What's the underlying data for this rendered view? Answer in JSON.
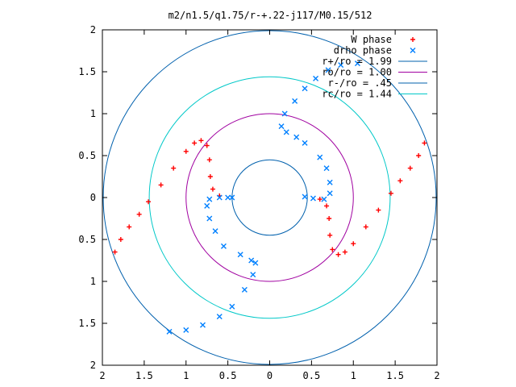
{
  "chart_data": {
    "type": "scatter",
    "title": "m2/n1.5/q1.75/r-+.22-j117/M0.15/512",
    "xlim": [
      -2,
      2
    ],
    "ylim": [
      -2,
      2
    ],
    "x_tick_values": [
      -2,
      -1.5,
      -1,
      -0.5,
      0,
      0.5,
      1,
      1.5,
      2
    ],
    "x_tick_labels": [
      "2",
      "1.5",
      "1",
      "0.5",
      "0",
      "0.5",
      "1",
      "1.5",
      "2"
    ],
    "y_tick_values": [
      2,
      1.5,
      1,
      0.5,
      0,
      -0.5,
      -1,
      -1.5,
      -2
    ],
    "y_tick_labels": [
      "2",
      "1.5",
      "1",
      "0.5",
      "0",
      "0.5",
      "1",
      "1.5",
      "2"
    ],
    "grid": false,
    "legend_position": "top-right",
    "legend": [
      {
        "label": "W phase",
        "marker": "plus",
        "color": "#ff0000"
      },
      {
        "label": "drho phase",
        "marker": "cross",
        "color": "#0080ff"
      },
      {
        "label": "r+/ro = 1.99",
        "marker": "line",
        "color": "#0060ad"
      },
      {
        "label": "ro/ro = 1.00",
        "marker": "line",
        "color": "#a000a0"
      },
      {
        "label": "r-/ro = .45",
        "marker": "line",
        "color": "#0060ad"
      },
      {
        "label": "rc/ro = 1.44",
        "marker": "line",
        "color": "#00c8c8"
      }
    ],
    "circles": [
      {
        "label": "r+/ro = 1.99",
        "radius": 1.99,
        "color": "#0060ad"
      },
      {
        "label": "ro/ro = 1.00",
        "radius": 1.0,
        "color": "#a000a0"
      },
      {
        "label": "r-/ro = .45",
        "radius": 0.45,
        "color": "#0060ad"
      },
      {
        "label": "rc/ro = 1.44",
        "radius": 1.44,
        "color": "#00c8c8"
      }
    ],
    "series": [
      {
        "name": "W phase",
        "marker": "plus",
        "color": "#ff0000",
        "points": [
          [
            1.85,
            0.65
          ],
          [
            1.78,
            0.5
          ],
          [
            1.68,
            0.35
          ],
          [
            1.56,
            0.2
          ],
          [
            1.45,
            0.05
          ],
          [
            1.3,
            -0.15
          ],
          [
            1.15,
            -0.35
          ],
          [
            1.0,
            -0.55
          ],
          [
            0.9,
            -0.65
          ],
          [
            0.82,
            -0.68
          ],
          [
            0.75,
            -0.62
          ],
          [
            0.72,
            -0.45
          ],
          [
            0.71,
            -0.25
          ],
          [
            0.68,
            -0.1
          ],
          [
            0.6,
            -0.02
          ],
          [
            -1.85,
            -0.65
          ],
          [
            -1.78,
            -0.5
          ],
          [
            -1.68,
            -0.35
          ],
          [
            -1.56,
            -0.2
          ],
          [
            -1.45,
            -0.05
          ],
          [
            -1.3,
            0.15
          ],
          [
            -1.15,
            0.35
          ],
          [
            -1.0,
            0.55
          ],
          [
            -0.9,
            0.65
          ],
          [
            -0.82,
            0.68
          ],
          [
            -0.75,
            0.62
          ],
          [
            -0.72,
            0.45
          ],
          [
            -0.71,
            0.25
          ],
          [
            -0.68,
            0.1
          ],
          [
            -0.6,
            0.02
          ]
        ]
      },
      {
        "name": "drho phase",
        "marker": "cross",
        "color": "#0080ff",
        "points": [
          [
            1.05,
            1.6
          ],
          [
            0.85,
            1.58
          ],
          [
            0.7,
            1.52
          ],
          [
            0.55,
            1.42
          ],
          [
            0.42,
            1.3
          ],
          [
            0.3,
            1.15
          ],
          [
            0.18,
            1.0
          ],
          [
            0.14,
            0.85
          ],
          [
            0.2,
            0.78
          ],
          [
            0.32,
            0.72
          ],
          [
            0.42,
            0.65
          ],
          [
            0.6,
            0.48
          ],
          [
            0.68,
            0.35
          ],
          [
            0.72,
            0.18
          ],
          [
            0.72,
            0.05
          ],
          [
            0.65,
            -0.02
          ],
          [
            0.52,
            -0.01
          ],
          [
            0.42,
            0.01
          ],
          [
            -1.2,
            -1.6
          ],
          [
            -1.0,
            -1.58
          ],
          [
            -0.8,
            -1.52
          ],
          [
            -0.6,
            -1.42
          ],
          [
            -0.45,
            -1.3
          ],
          [
            -0.3,
            -1.1
          ],
          [
            -0.2,
            -0.92
          ],
          [
            -0.17,
            -0.78
          ],
          [
            -0.22,
            -0.75
          ],
          [
            -0.35,
            -0.68
          ],
          [
            -0.55,
            -0.58
          ],
          [
            -0.65,
            -0.4
          ],
          [
            -0.72,
            -0.25
          ],
          [
            -0.75,
            -0.1
          ],
          [
            -0.72,
            -0.02
          ],
          [
            -0.6,
            0.0
          ],
          [
            -0.5,
            0.0
          ],
          [
            -0.45,
            0.0
          ]
        ]
      }
    ]
  }
}
